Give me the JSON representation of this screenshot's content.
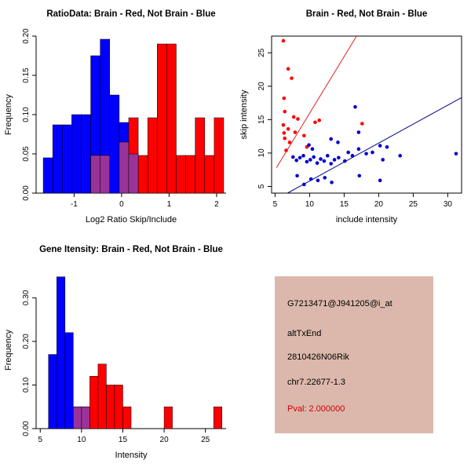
{
  "window": {
    "background": "#ffffff"
  },
  "colors": {
    "brain": "#ff0000",
    "not_brain": "#0000ff",
    "overlap": "#993399"
  },
  "chart_data": [
    {
      "id": "ratio_hist",
      "type": "histogram",
      "title": "RatioData: Brain - Red, Not Brain - Blue",
      "xlabel": "Log2 Ratio Skip/Include",
      "ylabel": "Frequency",
      "xlim": [
        -1.8,
        2.2
      ],
      "ylim": [
        0,
        0.2
      ],
      "xticks": [
        -1,
        0,
        1,
        2
      ],
      "xtick_labels": [
        "-1",
        "0",
        "1",
        "2"
      ],
      "yticks": [
        0,
        0.05,
        0.1,
        0.15,
        0.2
      ],
      "ytick_labels": [
        "0.00",
        "0.05",
        "0.10",
        "0.15",
        "0.20"
      ],
      "grid": false,
      "legend": "none",
      "series": [
        {
          "name": "not-brain",
          "color": "#0000ff",
          "bar_width": 0.2,
          "bars": [
            [
              -1.65,
              0.045
            ],
            [
              -1.45,
              0.087
            ],
            [
              -1.25,
              0.087
            ],
            [
              -1.05,
              0.1
            ],
            [
              -0.85,
              0.1
            ],
            [
              -0.65,
              0.175
            ],
            [
              -0.45,
              0.196
            ],
            [
              -0.25,
              0.125
            ],
            [
              -0.05,
              0.09
            ],
            [
              0.15,
              0.05
            ]
          ]
        },
        {
          "name": "brain",
          "color": "#ff0000",
          "bar_width": 0.2,
          "bars": [
            [
              -0.65,
              0.048
            ],
            [
              -0.45,
              0.048
            ],
            [
              -0.05,
              0.065
            ],
            [
              0.15,
              0.096
            ],
            [
              0.35,
              0.048
            ],
            [
              0.55,
              0.096
            ],
            [
              0.75,
              0.19
            ],
            [
              0.95,
              0.19
            ],
            [
              1.15,
              0.048
            ],
            [
              1.35,
              0.048
            ],
            [
              1.55,
              0.096
            ],
            [
              1.75,
              0.048
            ],
            [
              1.95,
              0.096
            ]
          ]
        },
        {
          "name": "overlap",
          "color": "#993399",
          "bar_width": 0.2,
          "bars": [
            [
              -0.65,
              0.048
            ],
            [
              -0.45,
              0.048
            ],
            [
              -0.05,
              0.065
            ],
            [
              0.15,
              0.05
            ]
          ]
        }
      ]
    },
    {
      "id": "intensity_scatter",
      "type": "scatter",
      "title": "Brain - Red, Not Brain - Blue",
      "xlabel": "include intensity",
      "ylabel": "skip intensity",
      "xlim": [
        4.5,
        32
      ],
      "ylim": [
        4,
        27.5
      ],
      "xticks": [
        5,
        10,
        15,
        20,
        25,
        30
      ],
      "xtick_labels": [
        "5",
        "10",
        "15",
        "20",
        "25",
        "30"
      ],
      "yticks": [
        5,
        10,
        15,
        20,
        25
      ],
      "ytick_labels": [
        "5",
        "10",
        "15",
        "20",
        "25"
      ],
      "grid": false,
      "legend": "none",
      "series": [
        {
          "name": "brain",
          "color": "#ff0000",
          "points": [
            [
              6.2,
              26.8
            ],
            [
              6.9,
              22.6
            ],
            [
              7.4,
              21.2
            ],
            [
              6.3,
              18.2
            ],
            [
              6.4,
              16.2
            ],
            [
              7.7,
              15.4
            ],
            [
              8.3,
              15.1
            ],
            [
              6.2,
              14.2
            ],
            [
              6.9,
              13.6
            ],
            [
              6.3,
              13.0
            ],
            [
              7.9,
              13.1
            ],
            [
              9.2,
              12.6
            ],
            [
              6.4,
              12.2
            ],
            [
              7.1,
              11.6
            ],
            [
              10.8,
              14.6
            ],
            [
              11.4,
              14.9
            ],
            [
              17.6,
              14.4
            ],
            [
              9.6,
              10.9
            ],
            [
              6.6,
              10.4
            ]
          ]
        },
        {
          "name": "not-brain",
          "color": "#0000cd",
          "points": [
            [
              7.6,
              9.4
            ],
            [
              8.1,
              8.9
            ],
            [
              8.6,
              9.3
            ],
            [
              9.1,
              9.6
            ],
            [
              9.6,
              8.7
            ],
            [
              10.1,
              9.0
            ],
            [
              10.6,
              9.4
            ],
            [
              11.1,
              8.5
            ],
            [
              11.6,
              9.1
            ],
            [
              12.1,
              8.8
            ],
            [
              12.6,
              9.6
            ],
            [
              13.1,
              8.4
            ],
            [
              13.6,
              9.0
            ],
            [
              14.2,
              9.3
            ],
            [
              15.1,
              8.8
            ],
            [
              15.6,
              10.1
            ],
            [
              16.2,
              9.6
            ],
            [
              17.1,
              10.6
            ],
            [
              18.2,
              9.9
            ],
            [
              19.1,
              10.1
            ],
            [
              20.2,
              11.1
            ],
            [
              20.6,
              9.0
            ],
            [
              21.2,
              10.9
            ],
            [
              23.1,
              9.6
            ],
            [
              31.2,
              9.9
            ],
            [
              8.2,
              6.6
            ],
            [
              9.2,
              5.3
            ],
            [
              10.2,
              6.1
            ],
            [
              11.2,
              5.9
            ],
            [
              12.2,
              6.3
            ],
            [
              13.2,
              5.6
            ],
            [
              17.2,
              6.6
            ],
            [
              20.2,
              5.9
            ],
            [
              13.1,
              12.1
            ],
            [
              14.1,
              11.6
            ],
            [
              16.6,
              16.9
            ],
            [
              17.1,
              13.1
            ],
            [
              9.9,
              11.2
            ],
            [
              10.4,
              10.6
            ]
          ]
        }
      ],
      "lines": [
        {
          "name": "brain-fit-line",
          "color": "#dd2222",
          "x1": 5.2,
          "y1": 7.8,
          "x2": 16.8,
          "y2": 27.5
        },
        {
          "name": "not-brain-fit-line",
          "color": "#00008b",
          "x1": 6.8,
          "y1": 4.0,
          "x2": 32.0,
          "y2": 18.3
        }
      ]
    },
    {
      "id": "gene_hist",
      "type": "histogram",
      "title": "Gene Itensity: Brain - Red, Not Brain - Blue",
      "xlabel": "Intensity",
      "ylabel": "Frequency",
      "xlim": [
        4.5,
        27.5
      ],
      "ylim": [
        0,
        0.36
      ],
      "xticks": [
        5,
        10,
        15,
        20,
        25
      ],
      "xtick_labels": [
        "5",
        "10",
        "15",
        "20",
        "25"
      ],
      "yticks": [
        0,
        0.1,
        0.2,
        0.3
      ],
      "ytick_labels": [
        "0.00",
        "0.10",
        "0.20",
        "0.30"
      ],
      "grid": false,
      "legend": "none",
      "series": [
        {
          "name": "not-brain",
          "color": "#0000ff",
          "bar_width": 1,
          "bars": [
            [
              6,
              0.17
            ],
            [
              7,
              0.348
            ],
            [
              8,
              0.22
            ],
            [
              9,
              0.05
            ],
            [
              10,
              0.05
            ]
          ]
        },
        {
          "name": "brain",
          "color": "#ff0000",
          "bar_width": 1,
          "bars": [
            [
              9,
              0.05
            ],
            [
              10,
              0.05
            ],
            [
              11,
              0.12
            ],
            [
              12,
              0.148
            ],
            [
              13,
              0.1
            ],
            [
              14,
              0.1
            ],
            [
              15,
              0.05
            ],
            [
              20,
              0.05
            ],
            [
              26,
              0.05
            ]
          ]
        },
        {
          "name": "overlap",
          "color": "#993399",
          "bar_width": 1,
          "bars": [
            [
              9,
              0.05
            ],
            [
              10,
              0.05
            ]
          ]
        }
      ]
    }
  ],
  "info_panel": {
    "bg": "#dcb8ac",
    "lines": [
      {
        "text": "G7213471@J941205@i_at",
        "color": "#000000"
      },
      {
        "text": "altTxEnd",
        "color": "#000000"
      },
      {
        "text": "2810426N06Rik",
        "color": "#000000"
      },
      {
        "text": "chr7.22677-1.3",
        "color": "#000000"
      },
      {
        "text": "Pval: 2.000000",
        "color": "#cc0000"
      }
    ]
  }
}
